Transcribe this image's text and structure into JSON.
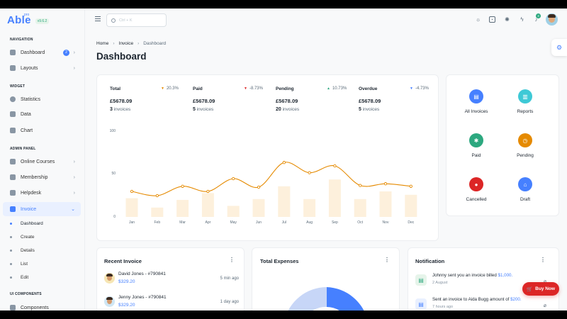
{
  "brand": {
    "name": "Able",
    "pro": "pro",
    "version": "v9.6.2"
  },
  "sidebar": {
    "sections": {
      "navigation": "NAVIGATION",
      "widget": "WIDGET",
      "admin": "ADMIN PANEL",
      "ui": "UI COMPONENTS"
    },
    "items": {
      "dashboard": "Dashboard",
      "dashboard_badge": "2",
      "layouts": "Layouts",
      "statistics": "Statistics",
      "data": "Data",
      "chart": "Chart",
      "online_courses": "Online Courses",
      "membership": "Membership",
      "helpdesk": "Helpdesk",
      "invoice": "Invoice",
      "components": "Components"
    },
    "invoice_sub": {
      "dashboard": "Dashboard",
      "create": "Create",
      "details": "Details",
      "list": "List",
      "edit": "Edit"
    }
  },
  "header": {
    "search_placeholder": "Ctrl + K",
    "notif_count": "3"
  },
  "breadcrumb": {
    "home": "Home",
    "invoice": "Invoice",
    "current": "Dashboard"
  },
  "page_title": "Dashboard",
  "stats": [
    {
      "label": "Total",
      "trend": "20.3%",
      "trend_dir": "down",
      "amount": "£5678.09",
      "count": "3",
      "count_label": "invoices"
    },
    {
      "label": "Paid",
      "trend": "-8.73%",
      "trend_dir": "down",
      "amount": "£5678.09",
      "count": "5",
      "count_label": "invoices"
    },
    {
      "label": "Pending",
      "trend": "10.73%",
      "trend_dir": "up",
      "amount": "£5678.09",
      "count": "20",
      "count_label": "invoices"
    },
    {
      "label": "Overdue",
      "trend": "-4.73%",
      "trend_dir": "down",
      "amount": "£5678.09",
      "count": "5",
      "count_label": "invoices"
    }
  ],
  "chart_data": {
    "type": "line",
    "categories": [
      "Jan",
      "Feb",
      "Mar",
      "Apr",
      "May",
      "Jun",
      "Jul",
      "Aug",
      "Sep",
      "Oct",
      "Nov",
      "Dec"
    ],
    "series": [
      {
        "type": "line",
        "values": [
          30,
          25,
          36,
          30,
          45,
          35,
          64,
          52,
          60,
          37,
          39,
          36
        ],
        "color": "#e58a00"
      },
      {
        "type": "bar",
        "values": [
          22,
          11,
          20,
          28,
          13,
          21,
          36,
          21,
          44,
          21,
          30,
          26
        ],
        "color": "#fdf0dc"
      }
    ],
    "ylim": [
      0,
      100
    ],
    "yticks": [
      "100",
      "50",
      "0"
    ],
    "grid": false,
    "legend": "none"
  },
  "quick_actions": [
    {
      "label": "All Invoices",
      "color": "#4680ff",
      "icon": "file-icon"
    },
    {
      "label": "Reports",
      "color": "#3ec9d6",
      "icon": "report-icon"
    },
    {
      "label": "Paid",
      "color": "#2ca87f",
      "icon": "paid-icon"
    },
    {
      "label": "Pending",
      "color": "#e58a00",
      "icon": "pending-icon"
    },
    {
      "label": "Cancelled",
      "color": "#dc2626",
      "icon": "cancel-icon"
    },
    {
      "label": "Draft",
      "color": "#4680ff",
      "icon": "draft-icon"
    }
  ],
  "recent_invoice": {
    "title": "Recent Invoice",
    "rows": [
      {
        "name": "David Jones - #790841",
        "amount": "$329.20",
        "time": "5 min ago"
      },
      {
        "name": "Jenny Jones - #790841",
        "amount": "$329.20",
        "time": "1 day ago"
      }
    ]
  },
  "total_expenses": {
    "title": "Total Expenses"
  },
  "notification": {
    "title": "Notification",
    "rows": [
      {
        "text": "Johnny sent you an invoice billed ",
        "amount": "$1,000.",
        "date": "2 August",
        "icon_color": "#2ca87f",
        "icon_bg": "#e6f4ea"
      },
      {
        "text": "Sent an invoice to Aida Bugg amount of ",
        "amount": "$200.",
        "date": "7 hours ago",
        "icon_color": "#4680ff",
        "icon_bg": "#e9f0ff"
      }
    ]
  },
  "buy_now": "Buy Now"
}
